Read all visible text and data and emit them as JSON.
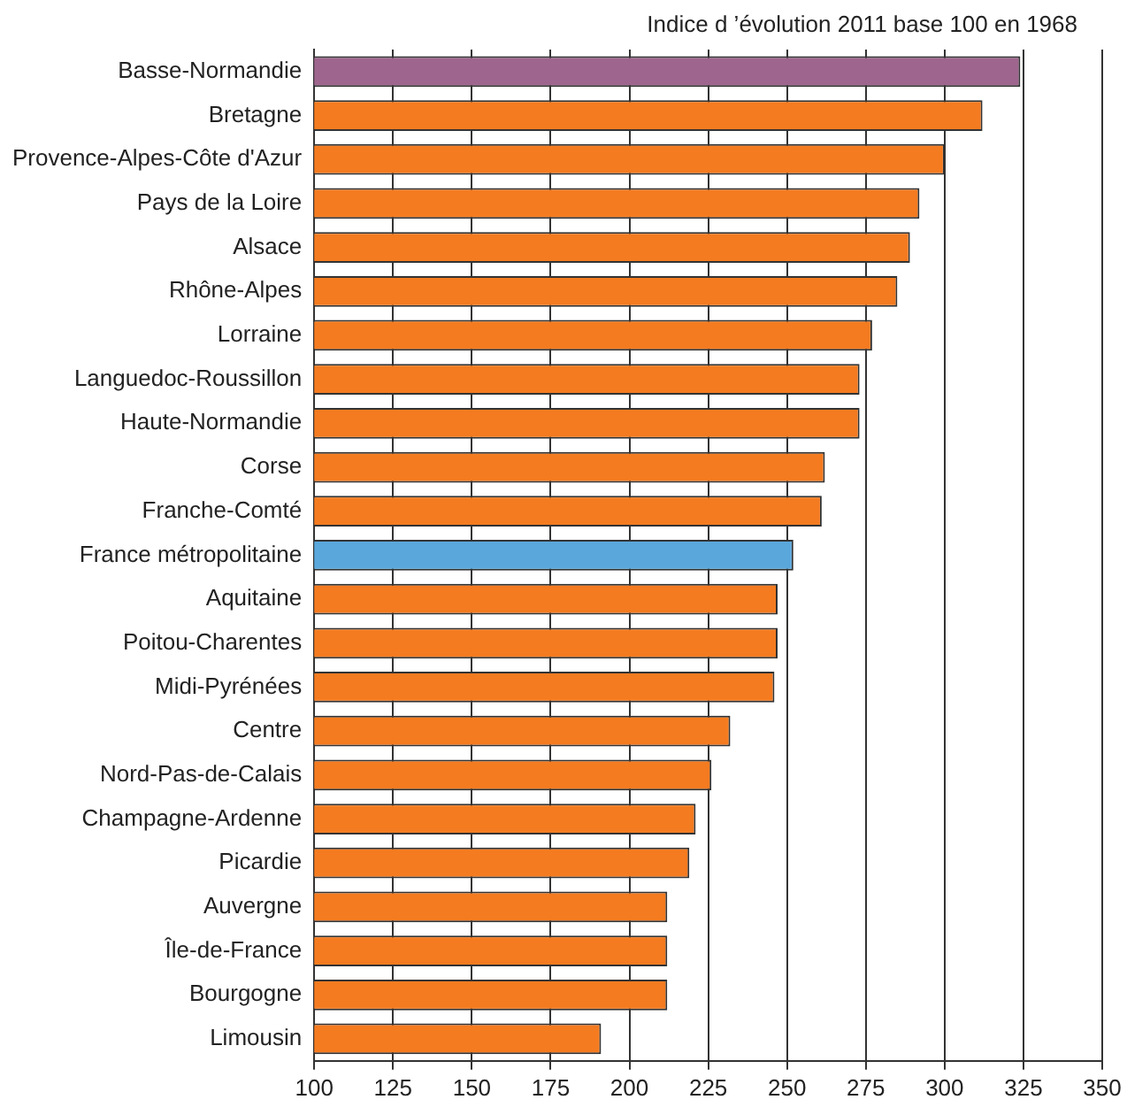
{
  "chart_data": {
    "type": "bar",
    "orientation": "horizontal",
    "title": "Indice d ’évolution 2011 base 100 en 1968",
    "categories": [
      "Basse-Normandie",
      "Bretagne",
      "Provence-Alpes-Côte d'Azur",
      "Pays de la Loire",
      "Alsace",
      "Rhône-Alpes",
      "Lorraine",
      "Languedoc-Roussillon",
      "Haute-Normandie",
      "Corse",
      "Franche-Comté",
      "France métropolitaine",
      "Aquitaine",
      "Poitou-Charentes",
      "Midi-Pyrénées",
      "Centre",
      "Nord-Pas-de-Calais",
      "Champagne-Ardenne",
      "Picardie",
      "Auvergne",
      "Île-de-France",
      "Bourgogne",
      "Limousin"
    ],
    "values": [
      324,
      312,
      300,
      292,
      289,
      285,
      277,
      273,
      273,
      262,
      261,
      252,
      247,
      247,
      246,
      232,
      226,
      221,
      219,
      212,
      212,
      212,
      191
    ],
    "colors": [
      "#9e668e",
      "#f47b20",
      "#f47b20",
      "#f47b20",
      "#f47b20",
      "#f47b20",
      "#f47b20",
      "#f47b20",
      "#f47b20",
      "#f47b20",
      "#f47b20",
      "#5aa7dc",
      "#f47b20",
      "#f47b20",
      "#f47b20",
      "#f47b20",
      "#f47b20",
      "#f47b20",
      "#f47b20",
      "#f47b20",
      "#f47b20",
      "#f47b20",
      "#f47b20"
    ],
    "xlim": [
      100,
      350
    ],
    "xticks": [
      100,
      125,
      150,
      175,
      200,
      225,
      250,
      275,
      300,
      325,
      350
    ],
    "grid": "x",
    "legend": false
  }
}
